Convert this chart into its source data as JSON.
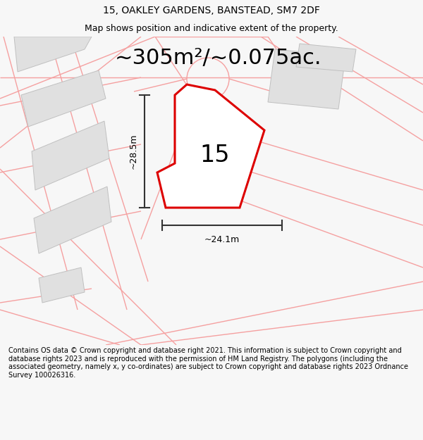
{
  "title_line1": "15, OAKLEY GARDENS, BANSTEAD, SM7 2DF",
  "title_line2": "Map shows position and indicative extent of the property.",
  "area_text": "~305m²/~0.075ac.",
  "plot_number": "15",
  "dim_height": "~28.5m",
  "dim_width": "~24.1m",
  "footer_text": "Contains OS data © Crown copyright and database right 2021. This information is subject to Crown copyright and database rights 2023 and is reproduced with the permission of HM Land Registry. The polygons (including the associated geometry, namely x, y co-ordinates) are subject to Crown copyright and database rights 2023 Ordnance Survey 100026316.",
  "bg_color": "#f7f7f7",
  "plot_color": "#dd0000",
  "plot_fill": "#ffffff",
  "road_color": "#f5a0a0",
  "building_color": "#e0e0e0",
  "building_edge": "#c0c0c0",
  "dim_line_color": "#333333",
  "title_fontsize": 10,
  "subtitle_fontsize": 9,
  "area_fontsize": 22,
  "number_fontsize": 24,
  "dim_fontsize": 9,
  "footer_fontsize": 7
}
